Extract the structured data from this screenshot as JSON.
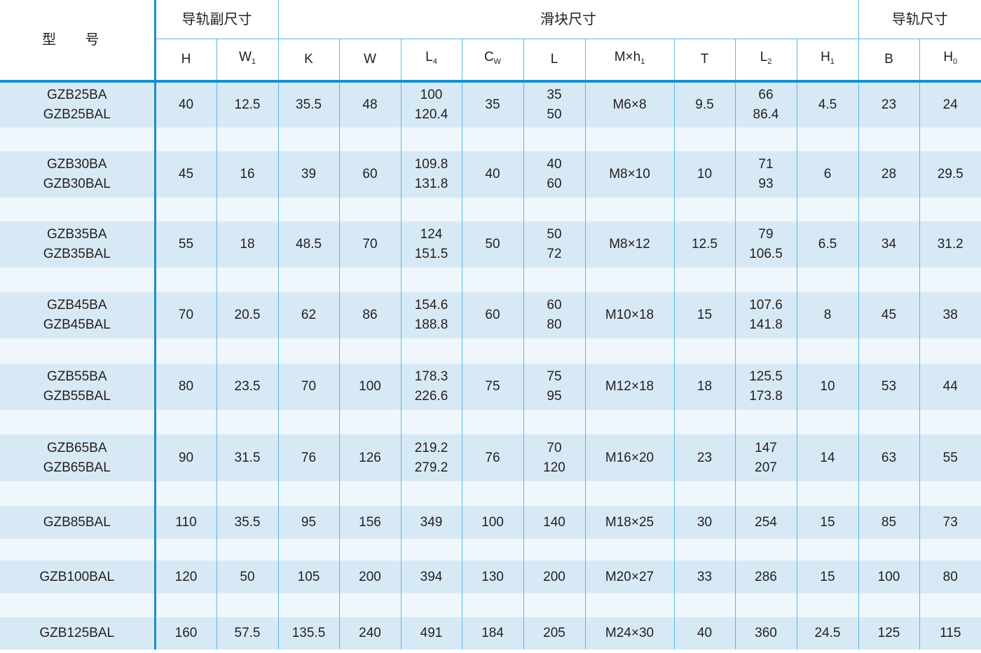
{
  "header": {
    "model": "型 号",
    "groups": [
      {
        "label": "导轨副尺寸",
        "span": 2
      },
      {
        "label": "滑块尺寸",
        "span": 9
      },
      {
        "label": "导轨尺寸",
        "span": 2
      }
    ],
    "columns": [
      {
        "label": "H",
        "sub": ""
      },
      {
        "label": "W",
        "sub": "1"
      },
      {
        "label": "K",
        "sub": ""
      },
      {
        "label": "W",
        "sub": ""
      },
      {
        "label": "L",
        "sub": "4"
      },
      {
        "label": "C",
        "sub": "W"
      },
      {
        "label": "L",
        "sub": ""
      },
      {
        "label": "M×h",
        "sub": "1"
      },
      {
        "label": "T",
        "sub": ""
      },
      {
        "label": "L",
        "sub": "2"
      },
      {
        "label": "H",
        "sub": "1"
      },
      {
        "label": "B",
        "sub": ""
      },
      {
        "label": "H",
        "sub": "0"
      }
    ]
  },
  "rows": [
    {
      "model": [
        "GZB25BA",
        "GZB25BAL"
      ],
      "cells": [
        [
          "40"
        ],
        [
          "12.5"
        ],
        [
          "35.5"
        ],
        [
          "48"
        ],
        [
          "100",
          "120.4"
        ],
        [
          "35"
        ],
        [
          "35",
          "50"
        ],
        [
          "M6×8"
        ],
        [
          "9.5"
        ],
        [
          "66",
          "86.4"
        ],
        [
          "4.5"
        ],
        [
          "23"
        ],
        [
          "24"
        ]
      ]
    },
    {
      "model": [
        "GZB30BA",
        "GZB30BAL"
      ],
      "cells": [
        [
          "45"
        ],
        [
          "16"
        ],
        [
          "39"
        ],
        [
          "60"
        ],
        [
          "109.8",
          "131.8"
        ],
        [
          "40"
        ],
        [
          "40",
          "60"
        ],
        [
          "M8×10"
        ],
        [
          "10"
        ],
        [
          "71",
          "93"
        ],
        [
          "6"
        ],
        [
          "28"
        ],
        [
          "29.5"
        ]
      ]
    },
    {
      "model": [
        "GZB35BA",
        "GZB35BAL"
      ],
      "cells": [
        [
          "55"
        ],
        [
          "18"
        ],
        [
          "48.5"
        ],
        [
          "70"
        ],
        [
          "124",
          "151.5"
        ],
        [
          "50"
        ],
        [
          "50",
          "72"
        ],
        [
          "M8×12"
        ],
        [
          "12.5"
        ],
        [
          "79",
          "106.5"
        ],
        [
          "6.5"
        ],
        [
          "34"
        ],
        [
          "31.2"
        ]
      ]
    },
    {
      "model": [
        "GZB45BA",
        "GZB45BAL"
      ],
      "cells": [
        [
          "70"
        ],
        [
          "20.5"
        ],
        [
          "62"
        ],
        [
          "86"
        ],
        [
          "154.6",
          "188.8"
        ],
        [
          "60"
        ],
        [
          "60",
          "80"
        ],
        [
          "M10×18"
        ],
        [
          "15"
        ],
        [
          "107.6",
          "141.8"
        ],
        [
          "8"
        ],
        [
          "45"
        ],
        [
          "38"
        ]
      ]
    },
    {
      "model": [
        "GZB55BA",
        "GZB55BAL"
      ],
      "cells": [
        [
          "80"
        ],
        [
          "23.5"
        ],
        [
          "70"
        ],
        [
          "100"
        ],
        [
          "178.3",
          "226.6"
        ],
        [
          "75"
        ],
        [
          "75",
          "95"
        ],
        [
          "M12×18"
        ],
        [
          "18"
        ],
        [
          "125.5",
          "173.8"
        ],
        [
          "10"
        ],
        [
          "53"
        ],
        [
          "44"
        ]
      ]
    },
    {
      "model": [
        "GZB65BA",
        "GZB65BAL"
      ],
      "cells": [
        [
          "90"
        ],
        [
          "31.5"
        ],
        [
          "76"
        ],
        [
          "126"
        ],
        [
          "219.2",
          "279.2"
        ],
        [
          "76"
        ],
        [
          "70",
          "120"
        ],
        [
          "M16×20"
        ],
        [
          "23"
        ],
        [
          "147",
          "207"
        ],
        [
          "14"
        ],
        [
          "63"
        ],
        [
          "55"
        ]
      ]
    },
    {
      "model": [
        "GZB85BAL"
      ],
      "cells": [
        [
          "110"
        ],
        [
          "35.5"
        ],
        [
          "95"
        ],
        [
          "156"
        ],
        [
          "349"
        ],
        [
          "100"
        ],
        [
          "140"
        ],
        [
          "M18×25"
        ],
        [
          "30"
        ],
        [
          "254"
        ],
        [
          "15"
        ],
        [
          "85"
        ],
        [
          "73"
        ]
      ]
    },
    {
      "model": [
        "GZB100BAL"
      ],
      "cells": [
        [
          "120"
        ],
        [
          "50"
        ],
        [
          "105"
        ],
        [
          "200"
        ],
        [
          "394"
        ],
        [
          "130"
        ],
        [
          "200"
        ],
        [
          "M20×27"
        ],
        [
          "33"
        ],
        [
          "286"
        ],
        [
          "15"
        ],
        [
          "100"
        ],
        [
          "80"
        ]
      ]
    },
    {
      "model": [
        "GZB125BAL"
      ],
      "cells": [
        [
          "160"
        ],
        [
          "57.5"
        ],
        [
          "135.5"
        ],
        [
          "240"
        ],
        [
          "491"
        ],
        [
          "184"
        ],
        [
          "205"
        ],
        [
          "M24×30"
        ],
        [
          "40"
        ],
        [
          "360"
        ],
        [
          "24.5"
        ],
        [
          "125"
        ],
        [
          "115"
        ]
      ]
    }
  ]
}
